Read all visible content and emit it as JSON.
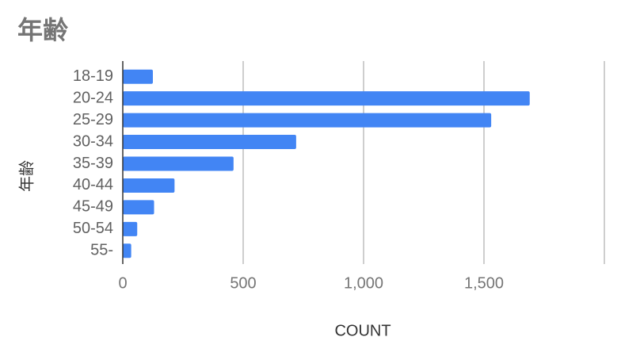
{
  "chart_data": {
    "type": "bar",
    "title": "年齢",
    "x_label": "COUNT",
    "y_label": "年齢",
    "categories": [
      "18-19",
      "20-24",
      "25-29",
      "30-34",
      "35-39",
      "40-44",
      "45-49",
      "50-54",
      "55-"
    ],
    "values": [
      125,
      1690,
      1530,
      720,
      460,
      215,
      130,
      60,
      35
    ],
    "color": "#4285f4",
    "xlim": [
      0,
      2000
    ],
    "xticks": [
      0,
      500,
      {
        "value": 1000,
        "label": "1,000"
      },
      {
        "value": 1500,
        "label": "1,500"
      }
    ],
    "grid": true
  }
}
